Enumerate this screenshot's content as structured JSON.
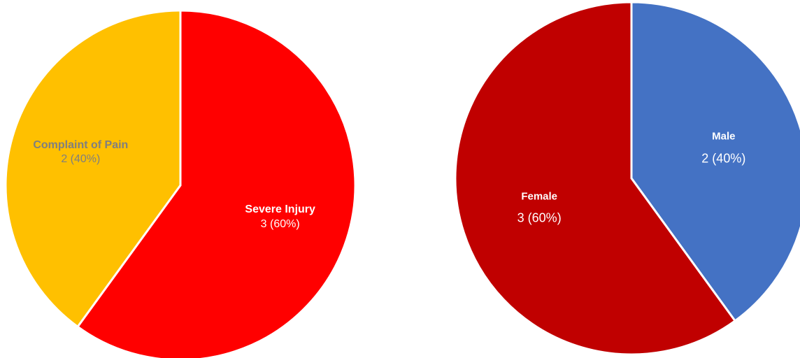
{
  "chart_data": [
    {
      "type": "pie",
      "categories": [
        "Severe Injury",
        "Complaint of Pain"
      ],
      "values": [
        3,
        2
      ],
      "value_labels": [
        "3 (60%)",
        "2 (40%)"
      ],
      "colors": [
        "#ff0000",
        "#ffc000"
      ],
      "label_colors": [
        "#ffffff",
        "#7f7f7f"
      ]
    },
    {
      "type": "pie",
      "categories": [
        "Male",
        "Female"
      ],
      "values": [
        2,
        3
      ],
      "value_labels": [
        "2 (40%)",
        "3 (60%)"
      ],
      "colors": [
        "#4472c4",
        "#c00000"
      ],
      "label_colors": [
        "#ffffff",
        "#ffffff"
      ]
    }
  ]
}
